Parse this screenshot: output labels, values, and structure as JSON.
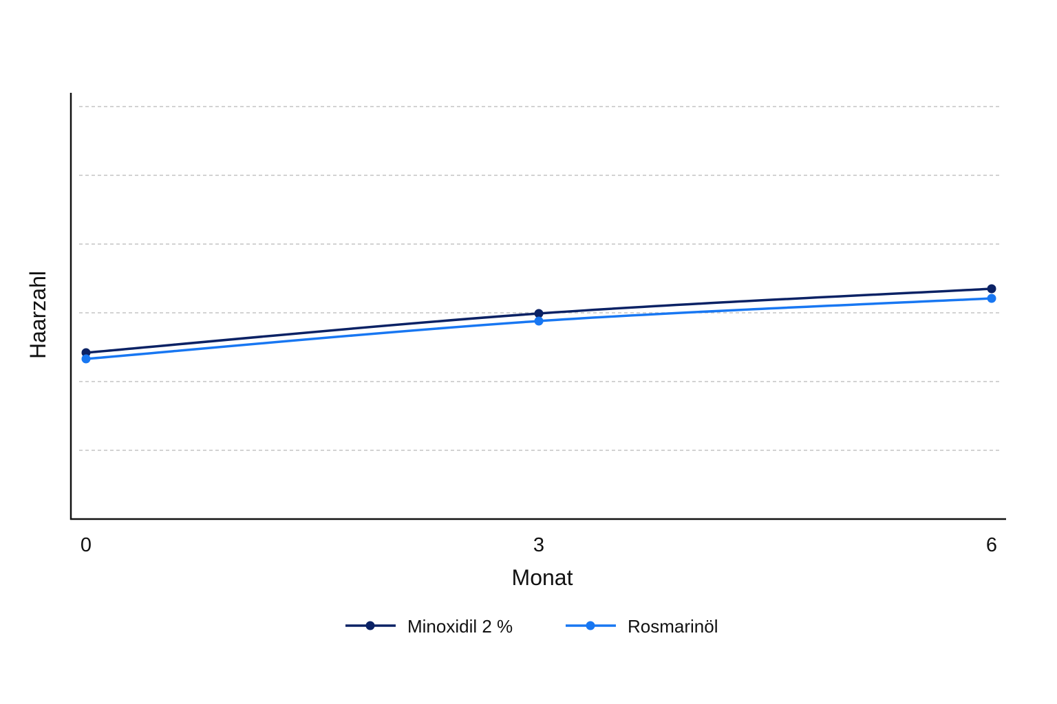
{
  "chart_data": {
    "type": "line",
    "title": "",
    "xlabel": "Monat",
    "ylabel": "Haarzahl",
    "x": [
      0,
      3,
      6
    ],
    "x_tick_labels": [
      "0",
      "3",
      "6"
    ],
    "xlim": [
      0,
      6
    ],
    "ylim": [
      0,
      6
    ],
    "y_tick_labels": [],
    "grid": true,
    "legend_position": "bottom-center",
    "series": [
      {
        "name": "Minoxidil 2 %",
        "color": "#0b2265",
        "values": [
          2.42,
          2.99,
          3.35
        ]
      },
      {
        "name": "Rosmarinöl",
        "color": "#1877f2",
        "values": [
          2.33,
          2.88,
          3.21
        ]
      }
    ]
  }
}
